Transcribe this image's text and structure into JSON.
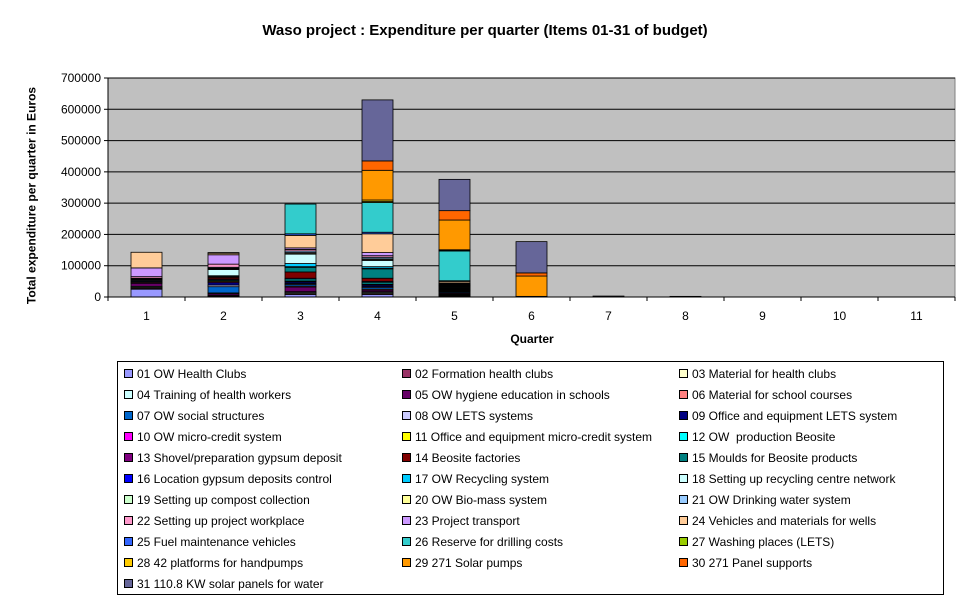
{
  "chart_data": {
    "type": "bar",
    "stacked": true,
    "title": "Waso project : Expenditure per quarter (Items 01-31 of budget)",
    "xlabel": "Quarter",
    "ylabel": "Total expenditure per quarter in Euros",
    "ylim": [
      0,
      700000
    ],
    "yticks": [
      "0",
      "100000",
      "200000",
      "300000",
      "400000",
      "500000",
      "600000",
      "700000"
    ],
    "categories": [
      "1",
      "2",
      "3",
      "4",
      "5",
      "6",
      "7",
      "8",
      "9",
      "10",
      "11"
    ],
    "grid": "horizontal",
    "legend_position": "bottom",
    "plot_background": "#c0c0c0",
    "series": [
      {
        "name": "01 OW Health Clubs",
        "color": "#9999ff",
        "values": [
          25000,
          2000,
          8000,
          8000,
          3000,
          0,
          0,
          0,
          0,
          0,
          0
        ]
      },
      {
        "name": "02 Formation health clubs",
        "color": "#993366",
        "values": [
          3000,
          3000,
          3000,
          3000,
          2000,
          0,
          0,
          0,
          0,
          0,
          0
        ]
      },
      {
        "name": "03 Material for health clubs",
        "color": "#ffffcc",
        "values": [
          3000,
          0,
          3000,
          3000,
          2000,
          0,
          0,
          0,
          0,
          0,
          0
        ]
      },
      {
        "name": "04 Training of health workers",
        "color": "#ccffff",
        "values": [
          3000,
          0,
          3000,
          3000,
          2000,
          0,
          0,
          0,
          0,
          0,
          0
        ]
      },
      {
        "name": "05 OW hygiene education in schools",
        "color": "#660066",
        "values": [
          10000,
          5000,
          15000,
          5000,
          3000,
          0,
          0,
          0,
          0,
          0,
          0
        ]
      },
      {
        "name": "06 Material for school courses",
        "color": "#ff8080",
        "values": [
          3000,
          3000,
          3000,
          3000,
          2000,
          0,
          0,
          0,
          0,
          0,
          0
        ]
      },
      {
        "name": "07 OW social structures",
        "color": "#0066cc",
        "values": [
          3000,
          20000,
          5000,
          5000,
          3000,
          0,
          0,
          0,
          0,
          0,
          0
        ]
      },
      {
        "name": "08 OW LETS systems",
        "color": "#ccccff",
        "values": [
          3000,
          5000,
          3000,
          3000,
          2000,
          0,
          0,
          0,
          0,
          0,
          0
        ]
      },
      {
        "name": "09 Office and equipment LETS system",
        "color": "#000080",
        "values": [
          3000,
          8000,
          5000,
          5000,
          2000,
          0,
          0,
          0,
          0,
          0,
          0
        ]
      },
      {
        "name": "10 OW micro-credit system",
        "color": "#ff00ff",
        "values": [
          2000,
          3000,
          2000,
          2000,
          1000,
          0,
          0,
          0,
          0,
          0,
          0
        ]
      },
      {
        "name": "11 Office and equipment micro-credit system",
        "color": "#ffff00",
        "values": [
          2000,
          3000,
          2000,
          2000,
          1000,
          0,
          0,
          0,
          0,
          0,
          0
        ]
      },
      {
        "name": "12 OW  production Beosite",
        "color": "#00ffff",
        "values": [
          0,
          3000,
          5000,
          5000,
          2000,
          0,
          0,
          0,
          0,
          0,
          0
        ]
      },
      {
        "name": "13 Shovel/preparation gypsum deposit",
        "color": "#800080",
        "values": [
          0,
          3000,
          3000,
          3000,
          2000,
          0,
          0,
          0,
          0,
          0,
          0
        ]
      },
      {
        "name": "14 Beosite factories",
        "color": "#800000",
        "values": [
          0,
          5000,
          20000,
          10000,
          2000,
          0,
          0,
          0,
          0,
          0,
          0
        ]
      },
      {
        "name": "15 Moulds for Beosite products",
        "color": "#008080",
        "values": [
          0,
          3000,
          15000,
          30000,
          3000,
          0,
          0,
          0,
          0,
          0,
          0
        ]
      },
      {
        "name": "16 Location gypsum deposits control",
        "color": "#0000ff",
        "values": [
          0,
          2000,
          2000,
          2000,
          1000,
          0,
          0,
          0,
          0,
          0,
          0
        ]
      },
      {
        "name": "17 OW Recycling system",
        "color": "#00ccff",
        "values": [
          0,
          0,
          10000,
          5000,
          2000,
          0,
          0,
          0,
          0,
          0,
          0
        ]
      },
      {
        "name": "18 Setting up recycling centre network",
        "color": "#ccffff",
        "values": [
          0,
          20000,
          30000,
          20000,
          2000,
          0,
          0,
          0,
          0,
          0,
          0
        ]
      },
      {
        "name": "19 Setting up compost collection",
        "color": "#ccffcc",
        "values": [
          0,
          2000,
          2000,
          2000,
          1000,
          0,
          0,
          0,
          0,
          0,
          0
        ]
      },
      {
        "name": "20 OW Bio-mass system",
        "color": "#ffff99",
        "values": [
          0,
          2000,
          3000,
          3000,
          1000,
          0,
          0,
          0,
          0,
          0,
          0
        ]
      },
      {
        "name": "21 OW Drinking water system",
        "color": "#99ccff",
        "values": [
          0,
          3000,
          5000,
          5000,
          2000,
          0,
          0,
          0,
          0,
          0,
          0
        ]
      },
      {
        "name": "22 Setting up project workplace",
        "color": "#ff99cc",
        "values": [
          5000,
          10000,
          5000,
          5000,
          2000,
          0,
          0,
          0,
          0,
          0,
          0
        ]
      },
      {
        "name": "23 Project transport",
        "color": "#cc99ff",
        "values": [
          28000,
          30000,
          5000,
          10000,
          2000,
          0,
          0,
          0,
          0,
          0,
          0
        ]
      },
      {
        "name": "24 Vehicles and materials for wells",
        "color": "#ffcc99",
        "values": [
          50000,
          5000,
          40000,
          60000,
          5000,
          0,
          0,
          0,
          0,
          0,
          0
        ]
      },
      {
        "name": "25 Fuel maintenance vehicles",
        "color": "#3366ff",
        "values": [
          0,
          2000,
          5000,
          5000,
          2000,
          0,
          0,
          0,
          0,
          0,
          0
        ]
      },
      {
        "name": "26 Reserve for drilling costs",
        "color": "#33cccc",
        "values": [
          0,
          0,
          95000,
          95000,
          95000,
          0,
          0,
          0,
          0,
          0,
          0
        ]
      },
      {
        "name": "27 Washing places (LETS)",
        "color": "#99cc00",
        "values": [
          0,
          0,
          0,
          3000,
          2000,
          0,
          0,
          0,
          0,
          0,
          0
        ]
      },
      {
        "name": "28 42 platforms for handpumps",
        "color": "#ffcc00",
        "values": [
          0,
          0,
          0,
          5000,
          2000,
          2000,
          0,
          0,
          0,
          0,
          0
        ]
      },
      {
        "name": "29 271 Solar pumps",
        "color": "#ff9900",
        "values": [
          0,
          0,
          0,
          95000,
          95000,
          65000,
          0,
          0,
          0,
          0,
          0
        ]
      },
      {
        "name": "30 271 Panel supports",
        "color": "#ff6600",
        "values": [
          0,
          0,
          0,
          30000,
          30000,
          10000,
          0,
          0,
          0,
          0,
          0
        ]
      },
      {
        "name": "31 110.8 KW solar panels for water",
        "color": "#666699",
        "values": [
          0,
          0,
          0,
          195000,
          100000,
          100000,
          3000,
          2000,
          0,
          0,
          0
        ]
      }
    ]
  }
}
